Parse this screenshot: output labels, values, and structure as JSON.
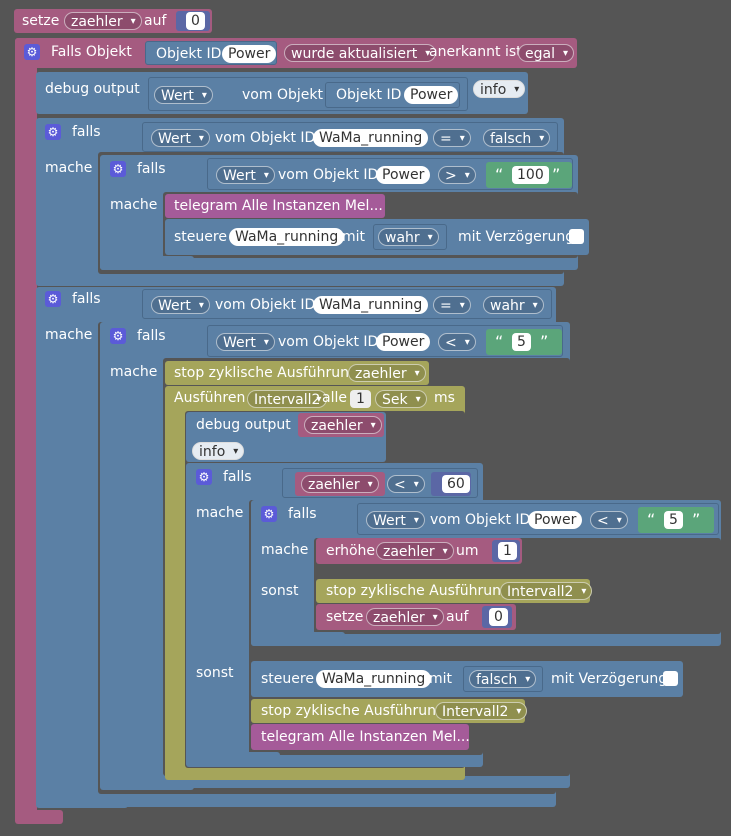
{
  "set_counter": {
    "setze": "setze",
    "var": "zaehler",
    "auf": "auf",
    "value": "0"
  },
  "trigger": {
    "falls_objekt": "Falls Objekt",
    "objekt_id_label": "Objekt ID",
    "objekt_id_value": "Power",
    "event": "wurde aktualisiert",
    "anerkannt_label": "anerkannt ist",
    "anerkannt_value": "egal"
  },
  "debug1": {
    "label": "debug output",
    "wert": "Wert",
    "vom_objekt_id": "vom Objekt ID",
    "objekt_id": "Objekt ID",
    "power": "Power",
    "level": "info"
  },
  "if1": {
    "falls": "falls",
    "mache": "mache",
    "wert": "Wert",
    "vom_objekt_id": "vom Objekt ID",
    "obj": "WaMa_running",
    "op": "=",
    "value": "falsch",
    "inner": {
      "falls": "falls",
      "mache": "mache",
      "wert": "Wert",
      "vom_objekt_id": "vom Objekt ID",
      "obj": "Power",
      "op": ">",
      "quote_open": "“",
      "num": "100",
      "quote_close": "”",
      "telegram": "telegram Alle Instanzen Mel...",
      "steuere": "steuere",
      "steuere_obj": "WaMa_running",
      "mit": "mit",
      "mit_value": "wahr",
      "verzoegerung": "mit Verzögerung"
    }
  },
  "if2": {
    "falls": "falls",
    "mache": "mache",
    "wert": "Wert",
    "vom_objekt_id": "vom Objekt ID",
    "obj": "WaMa_running",
    "op": "=",
    "value": "wahr",
    "inner": {
      "falls": "falls",
      "mache": "mache",
      "wert": "Wert",
      "vom_objekt_id": "vom Objekt ID",
      "obj": "Power",
      "op": "<",
      "quote_open": "“",
      "num": "5",
      "quote_close": "”",
      "stop1": "stop zyklische Ausführung",
      "stop1_var": "zaehler",
      "interval": {
        "ausfuehren": "Ausführen",
        "name": "Intervall2",
        "alle": "alle",
        "num": "1",
        "unit": "Sek",
        "ms": "ms"
      },
      "debug": {
        "label": "debug output",
        "var": "zaehler",
        "level": "info"
      },
      "if3": {
        "falls": "falls",
        "mache": "mache",
        "sonst": "sonst",
        "var": "zaehler",
        "op": "<",
        "num": "60",
        "if4": {
          "falls": "falls",
          "mache": "mache",
          "sonst": "sonst",
          "wert": "Wert",
          "vom_objekt_id": "vom Objekt ID",
          "obj": "Power",
          "op": "<",
          "quote_open": "“",
          "num": "5",
          "quote_close": "”",
          "erhoehe": "erhöhe",
          "erhoehe_var": "zaehler",
          "um": "um",
          "um_num": "1",
          "stop": "stop zyklische Ausführung",
          "stop_var": "Intervall2",
          "setze": "setze",
          "setze_var": "zaehler",
          "auf": "auf",
          "auf_num": "0"
        },
        "else": {
          "steuere": "steuere",
          "steuere_obj": "WaMa_running",
          "mit": "mit",
          "mit_value": "falsch",
          "verzoegerung": "mit Verzögerung",
          "stop": "stop zyklische Ausführung",
          "stop_var": "Intervall2",
          "telegram": "telegram Alle Instanzen Mel..."
        }
      }
    }
  },
  "colors": {
    "variables": "#a55b80",
    "logic": "#5b80a5",
    "timer": "#a5a55b",
    "telegram": "#a55b99",
    "text": "#5ba57a",
    "math": "#5b67a5"
  }
}
